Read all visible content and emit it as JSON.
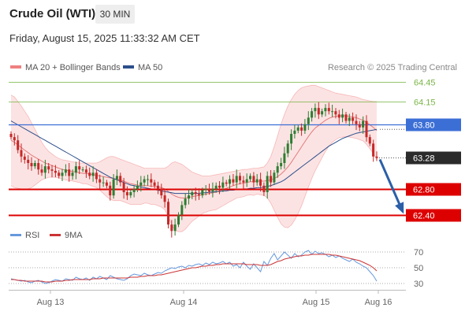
{
  "header": {
    "title": "Crude Oil (WTI)",
    "interval": "30 MIN",
    "timestamp": "Friday, August 15, 2025 11:33:32 AM CET"
  },
  "colors": {
    "bollinger_band": "#f08080",
    "ma20": "#e07070",
    "ma50": "#2c4f8c",
    "current_level": "#2b2b2b",
    "support": "#dd0000",
    "resistance_green": "#7ab648",
    "pivot": "#3c6fd6",
    "candle_up": "#2e7d32",
    "candle_down": "#c62828",
    "rsi": "#6699dd",
    "rsi_ma": "#cc3333",
    "arrow": "#2b5fa8"
  },
  "chart_data": [
    {
      "type": "candlestick",
      "legend": [
        {
          "name": "MA 20 + Bollinger Bands",
          "color": "#f08080"
        },
        {
          "name": "MA 50",
          "color": "#2c4f8c"
        }
      ],
      "legend_placement": "top-left",
      "copyright": "Research © 2025 Trading Central",
      "ylim": [
        62.3,
        64.55
      ],
      "x_ticks": [
        "Aug 13",
        "Aug 14",
        "Aug 15",
        "Aug 16"
      ],
      "levels": [
        {
          "value": 64.45,
          "label": "64.45",
          "style": "resistance_green"
        },
        {
          "value": 64.15,
          "label": "64.15",
          "style": "resistance_green"
        },
        {
          "value": 63.8,
          "label": "63.80",
          "style": "pivot"
        },
        {
          "value": 63.28,
          "label": "63.28",
          "style": "current_level"
        },
        {
          "value": 62.8,
          "label": "62.80",
          "style": "support"
        },
        {
          "value": 62.4,
          "label": "62.40",
          "style": "support"
        }
      ],
      "forecast_arrow": {
        "from": 63.28,
        "to": 62.4
      },
      "close": [
        63.6,
        63.55,
        63.4,
        63.3,
        63.25,
        63.2,
        63.15,
        63.2,
        63.1,
        63.05,
        63.15,
        63.1,
        63.08,
        63.05,
        63.0,
        63.05,
        63.1,
        63.0,
        63.05,
        63.15,
        63.1,
        63.1,
        63.05,
        63.0,
        63.05,
        62.95,
        62.9,
        62.9,
        62.85,
        62.7,
        62.95,
        63.0,
        62.9,
        62.75,
        62.7,
        62.75,
        62.8,
        62.85,
        62.9,
        62.95,
        62.95,
        62.9,
        62.85,
        62.8,
        62.7,
        62.6,
        62.25,
        62.15,
        62.25,
        62.4,
        62.55,
        62.65,
        62.7,
        62.75,
        62.72,
        62.7,
        62.78,
        62.8,
        62.76,
        62.8,
        62.85,
        62.82,
        62.9,
        62.88,
        62.95,
        62.9,
        63.0,
        62.93,
        62.9,
        62.95,
        63.0,
        62.9,
        62.95,
        62.85,
        62.75,
        63.0,
        62.9,
        63.05,
        63.15,
        63.2,
        63.35,
        63.5,
        63.65,
        63.7,
        63.75,
        63.7,
        63.8,
        63.9,
        64.0,
        64.05,
        63.95,
        64.0,
        64.05,
        64.0,
        64.0,
        63.95,
        63.9,
        63.95,
        63.85,
        63.9,
        63.85,
        63.8,
        63.75,
        63.85,
        63.6,
        63.5,
        63.3,
        63.28
      ],
      "ma20": [
        63.55,
        63.52,
        63.48,
        63.44,
        63.4,
        63.36,
        63.32,
        63.29,
        63.26,
        63.23,
        63.2,
        63.18,
        63.16,
        63.14,
        63.12,
        63.1,
        63.09,
        63.08,
        63.07,
        63.06,
        63.05,
        63.04,
        63.04,
        63.03,
        63.02,
        63.01,
        63.0,
        62.99,
        62.98,
        62.97,
        62.96,
        62.95,
        62.94,
        62.92,
        62.9,
        62.88,
        62.87,
        62.86,
        62.85,
        62.85,
        62.85,
        62.84,
        62.84,
        62.83,
        62.82,
        62.8,
        62.76,
        62.72,
        62.69,
        62.67,
        62.66,
        62.66,
        62.67,
        62.68,
        62.69,
        62.7,
        62.71,
        62.72,
        62.73,
        62.74,
        62.75,
        62.77,
        62.79,
        62.81,
        62.83,
        62.85,
        62.87,
        62.88,
        62.89,
        62.9,
        62.91,
        62.91,
        62.92,
        62.92,
        62.92,
        62.93,
        62.94,
        62.96,
        62.99,
        63.03,
        63.08,
        63.14,
        63.21,
        63.29,
        63.37,
        63.45,
        63.53,
        63.61,
        63.68,
        63.74,
        63.78,
        63.82,
        63.86,
        63.89,
        63.91,
        63.92,
        63.93,
        63.93,
        63.93,
        63.92,
        63.91,
        63.9,
        63.88,
        63.86,
        63.83,
        63.79,
        63.75,
        63.7
      ],
      "bb_upper": [
        64.25,
        64.22,
        64.15,
        64.08,
        64.0,
        63.92,
        63.82,
        63.72,
        63.62,
        63.52,
        63.44,
        63.38,
        63.34,
        63.3,
        63.27,
        63.25,
        63.24,
        63.23,
        63.22,
        63.21,
        63.2,
        63.2,
        63.2,
        63.2,
        63.2,
        63.2,
        63.22,
        63.25,
        63.28,
        63.3,
        63.3,
        63.28,
        63.26,
        63.24,
        63.22,
        63.2,
        63.18,
        63.16,
        63.14,
        63.12,
        63.12,
        63.12,
        63.12,
        63.12,
        63.12,
        63.12,
        63.15,
        63.2,
        63.22,
        63.2,
        63.18,
        63.14,
        63.1,
        63.06,
        63.04,
        63.02,
        63.0,
        63.0,
        63.0,
        63.01,
        63.02,
        63.03,
        63.04,
        63.05,
        63.06,
        63.07,
        63.08,
        63.09,
        63.1,
        63.1,
        63.11,
        63.12,
        63.12,
        63.13,
        63.14,
        63.2,
        63.3,
        63.45,
        63.62,
        63.8,
        63.95,
        64.08,
        64.18,
        64.26,
        64.32,
        64.36,
        64.38,
        64.39,
        64.4,
        64.4,
        64.38,
        64.36,
        64.34,
        64.32,
        64.3,
        64.28,
        64.27,
        64.26,
        64.25,
        64.24,
        64.23,
        64.22,
        64.2,
        64.18,
        64.17,
        64.16,
        64.15,
        64.15
      ],
      "bb_lower": [
        62.85,
        62.82,
        62.81,
        62.8,
        62.8,
        62.8,
        62.82,
        62.86,
        62.9,
        62.94,
        62.96,
        62.98,
        62.98,
        62.98,
        62.97,
        62.95,
        62.94,
        62.93,
        62.92,
        62.91,
        62.9,
        62.88,
        62.88,
        62.86,
        62.84,
        62.82,
        62.78,
        62.73,
        62.68,
        62.64,
        62.62,
        62.62,
        62.62,
        62.6,
        62.58,
        62.56,
        62.56,
        62.56,
        62.56,
        62.58,
        62.58,
        62.56,
        62.56,
        62.54,
        62.52,
        62.48,
        62.37,
        62.24,
        62.16,
        62.14,
        62.14,
        62.18,
        62.24,
        62.3,
        62.34,
        62.38,
        62.42,
        62.44,
        62.46,
        62.47,
        62.48,
        62.51,
        62.54,
        62.57,
        62.6,
        62.63,
        62.66,
        62.67,
        62.68,
        62.7,
        62.71,
        62.7,
        62.72,
        62.71,
        62.7,
        62.66,
        62.58,
        62.47,
        62.36,
        62.26,
        62.21,
        62.2,
        62.24,
        62.32,
        62.42,
        62.54,
        62.68,
        62.83,
        62.96,
        63.08,
        63.18,
        63.28,
        63.38,
        63.46,
        63.52,
        63.56,
        63.59,
        63.6,
        63.61,
        63.6,
        63.59,
        63.58,
        63.56,
        63.54,
        63.49,
        63.42,
        63.35,
        63.25
      ],
      "ma50": [
        63.85,
        63.82,
        63.79,
        63.76,
        63.73,
        63.7,
        63.67,
        63.64,
        63.61,
        63.58,
        63.55,
        63.52,
        63.49,
        63.46,
        63.43,
        63.4,
        63.37,
        63.34,
        63.31,
        63.28,
        63.25,
        63.22,
        63.19,
        63.16,
        63.13,
        63.1,
        63.07,
        63.04,
        63.01,
        62.98,
        62.96,
        62.94,
        62.92,
        62.9,
        62.88,
        62.86,
        62.85,
        62.84,
        62.83,
        62.82,
        62.81,
        62.8,
        62.79,
        62.78,
        62.77,
        62.76,
        62.75,
        62.74,
        62.73,
        62.73,
        62.73,
        62.73,
        62.73,
        62.73,
        62.73,
        62.73,
        62.74,
        62.74,
        62.75,
        62.75,
        62.76,
        62.76,
        62.77,
        62.77,
        62.78,
        62.78,
        62.79,
        62.79,
        62.8,
        62.8,
        62.81,
        62.81,
        62.82,
        62.82,
        62.83,
        62.84,
        62.85,
        62.87,
        62.89,
        62.91,
        62.94,
        62.98,
        63.02,
        63.06,
        63.1,
        63.14,
        63.18,
        63.22,
        63.26,
        63.3,
        63.34,
        63.38,
        63.42,
        63.46,
        63.49,
        63.52,
        63.55,
        63.58,
        63.6,
        63.62,
        63.64,
        63.66,
        63.67,
        63.68,
        63.69,
        63.7,
        63.71,
        63.72
      ]
    },
    {
      "type": "line",
      "legend": [
        {
          "name": "RSI",
          "color": "#6699dd"
        },
        {
          "name": "9MA",
          "color": "#cc3333"
        }
      ],
      "legend_placement": "top-left",
      "ylim": [
        25,
        78
      ],
      "y_ticks": [
        70,
        50,
        30
      ],
      "series": [
        {
          "name": "RSI",
          "values": [
            36,
            35,
            34,
            33,
            34,
            32,
            31,
            33,
            34,
            32,
            30,
            31,
            33,
            35,
            34,
            33,
            36,
            35,
            34,
            38,
            36,
            35,
            37,
            34,
            38,
            36,
            39,
            37,
            35,
            40,
            38,
            36,
            35,
            34,
            36,
            40,
            42,
            41,
            40,
            43,
            41,
            40,
            42,
            44,
            43,
            46,
            48,
            50,
            49,
            51,
            52,
            50,
            53,
            52,
            54,
            55,
            53,
            56,
            54,
            57,
            55,
            56,
            58,
            55,
            57,
            52,
            54,
            50,
            57,
            52,
            48,
            55,
            50,
            45,
            58,
            53,
            62,
            68,
            60,
            65,
            70,
            66,
            62,
            68,
            64,
            66,
            70,
            72,
            67,
            71,
            68,
            69,
            67,
            64,
            66,
            63,
            65,
            62,
            60,
            58,
            61,
            57,
            55,
            52,
            50,
            45,
            40,
            33
          ]
        },
        {
          "name": "9MA",
          "values": [
            35,
            35,
            34,
            34,
            33,
            33,
            33,
            33,
            33,
            33,
            32,
            32,
            32,
            33,
            33,
            33,
            34,
            34,
            35,
            35,
            35,
            35,
            35,
            35,
            36,
            36,
            36,
            37,
            37,
            37,
            37,
            37,
            37,
            37,
            37,
            38,
            38,
            38,
            39,
            39,
            40,
            40,
            40,
            41,
            41,
            42,
            43,
            44,
            45,
            46,
            47,
            48,
            49,
            50,
            50,
            51,
            52,
            52,
            53,
            53,
            54,
            54,
            55,
            55,
            55,
            55,
            55,
            55,
            55,
            54,
            54,
            54,
            54,
            53,
            53,
            53,
            54,
            56,
            58,
            59,
            61,
            62,
            63,
            64,
            65,
            65,
            66,
            66,
            67,
            67,
            67,
            67,
            67,
            67,
            66,
            66,
            65,
            64,
            63,
            62,
            61,
            60,
            59,
            57,
            55,
            53,
            50,
            46
          ]
        }
      ]
    }
  ]
}
